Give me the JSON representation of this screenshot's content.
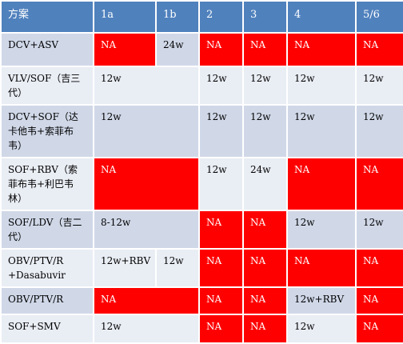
{
  "colors": {
    "header": "#4f81bd",
    "row_dark": "#d0d8e8",
    "row_light": "#e9edf4",
    "na_fill": "#ff0000"
  },
  "header": {
    "c0": "方案",
    "c1": "1a",
    "c2": "1b",
    "c3": "2",
    "c4": "3",
    "c5": "4",
    "c6": "5/6"
  },
  "rows": [
    {
      "label": "DCV+ASV",
      "c1": "NA",
      "c2": "24w",
      "c3": "NA",
      "c4": "NA",
      "c5": "NA",
      "c6": "NA"
    },
    {
      "label": "VLV/SOF（吉三代）",
      "c1": "12w",
      "c3": "12w",
      "c4": "12w",
      "c5": "12w",
      "c6": "12w"
    },
    {
      "label": "DCV+SOF（达卡他韦+索菲布韦）",
      "c1": "12w",
      "c3": "12w",
      "c4": "12w",
      "c5": "12w",
      "c6": "12w"
    },
    {
      "label": "SOF+RBV（索菲布韦+利巴韦林）",
      "c1": "NA",
      "c3": "12w",
      "c4": "24w",
      "c5": "NA",
      "c6": "NA"
    },
    {
      "label": "SOF/LDV（吉二代）",
      "c1": "8-12w",
      "c3": "NA",
      "c4": "NA",
      "c5": "12w",
      "c6": "12w"
    },
    {
      "label": "OBV/PTV/R +Dasabuvir",
      "c1": "12w+RBV",
      "c2": "12w",
      "c3": "NA",
      "c4": "NA",
      "c5": "NA",
      "c6": "NA"
    },
    {
      "label": "OBV/PTV/R",
      "c1": "NA",
      "c3": "NA",
      "c4": "NA",
      "c5": "12w+RBV",
      "c6": "NA"
    },
    {
      "label": "SOF+SMV",
      "c1": "12w",
      "c3": "NA",
      "c4": "NA",
      "c5": "12w",
      "c6": "NA"
    }
  ]
}
